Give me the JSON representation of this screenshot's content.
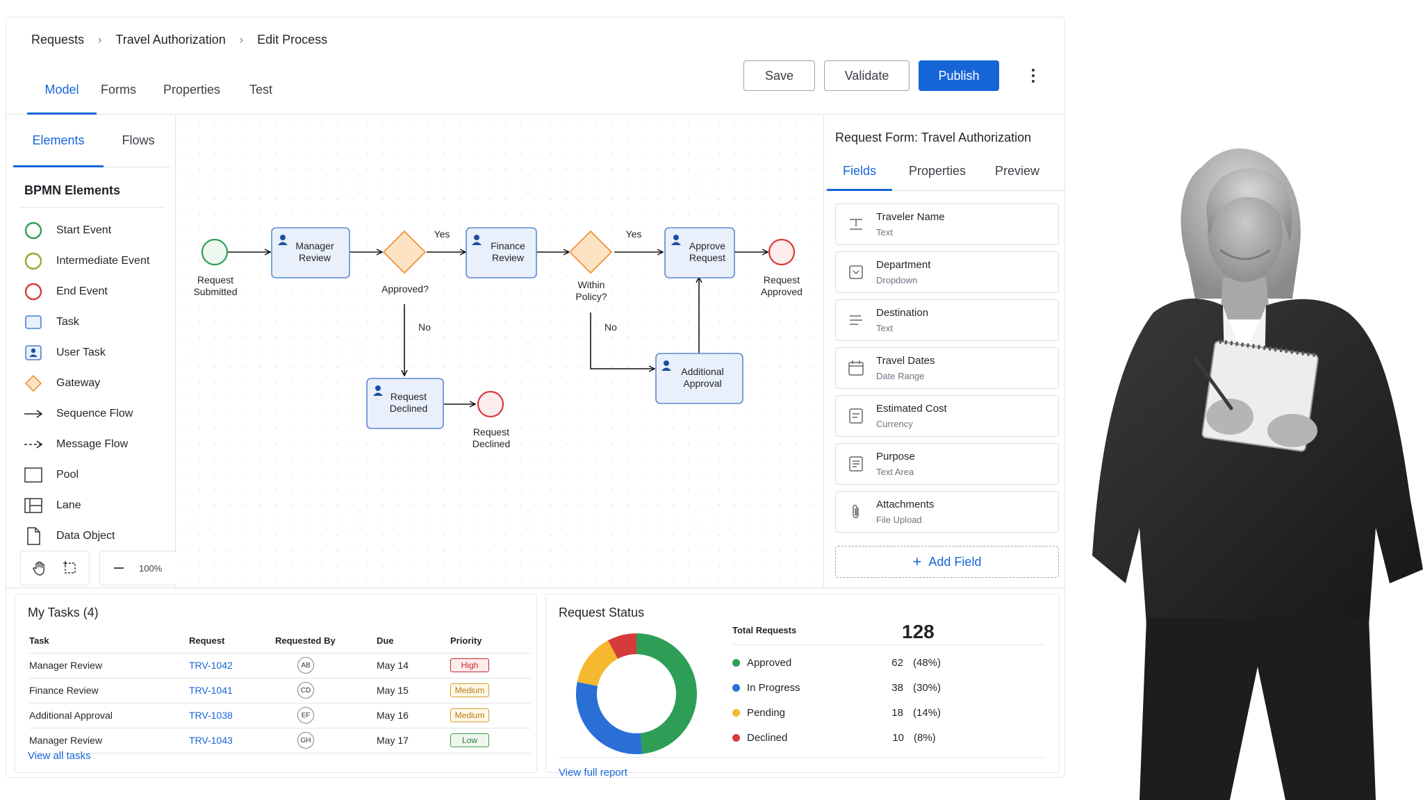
{
  "breadcrumb": [
    "Requests",
    "Travel Authorization",
    "Edit Process"
  ],
  "main_tabs": [
    "Model",
    "Forms",
    "Properties",
    "Test"
  ],
  "actions": {
    "save": "Save",
    "validate": "Validate",
    "publish": "Publish"
  },
  "left_panel": {
    "tabs": [
      "Elements",
      "Flows"
    ],
    "title": "BPMN Elements",
    "elements": [
      {
        "label": "Start Event",
        "icon": "start-event-icon"
      },
      {
        "label": "Intermediate Event",
        "icon": "intermediate-event-icon"
      },
      {
        "label": "End Event",
        "icon": "end-event-icon"
      },
      {
        "label": "Task",
        "icon": "task-icon"
      },
      {
        "label": "User Task",
        "icon": "user-task-icon"
      },
      {
        "label": "Gateway",
        "icon": "gateway-icon"
      },
      {
        "label": "Sequence Flow",
        "icon": "sequence-flow-icon"
      },
      {
        "label": "Message Flow",
        "icon": "message-flow-icon"
      },
      {
        "label": "Pool",
        "icon": "pool-icon"
      },
      {
        "label": "Lane",
        "icon": "lane-icon"
      },
      {
        "label": "Data Object",
        "icon": "data-object-icon"
      }
    ],
    "zoom": "100%"
  },
  "diagram": {
    "nodes": {
      "start": "Request\nSubmitted",
      "manager": "Manager\nReview",
      "approved": "Approved?",
      "finance": "Finance\nReview",
      "policy": "Within\nPolicy?",
      "approve": "Approve\nRequest",
      "end_approved": "Request\nApproved",
      "declined": "Request\nDeclined",
      "end_declined": "Request\nDeclined",
      "additional": "Additional\nApproval"
    },
    "labels": {
      "yes1": "Yes",
      "yes2": "Yes",
      "no1": "No",
      "no2": "No"
    }
  },
  "right_panel": {
    "title": "Request Form: Travel Authorization",
    "tabs": [
      "Fields",
      "Properties",
      "Preview"
    ],
    "fields": [
      {
        "name": "Traveler Name",
        "type": "Text",
        "icon": "text-field-icon"
      },
      {
        "name": "Department",
        "type": "Dropdown",
        "icon": "dropdown-icon"
      },
      {
        "name": "Destination",
        "type": "Text",
        "icon": "text-lines-icon"
      },
      {
        "name": "Travel Dates",
        "type": "Date Range",
        "icon": "calendar-icon"
      },
      {
        "name": "Estimated Cost",
        "type": "Currency",
        "icon": "currency-icon"
      },
      {
        "name": "Purpose",
        "type": "Text Area",
        "icon": "text-area-icon"
      },
      {
        "name": "Attachments",
        "type": "File Upload",
        "icon": "paperclip-icon"
      }
    ],
    "add_field": "Add Field"
  },
  "tasks": {
    "title": "My Tasks (4)",
    "columns": [
      "Task",
      "Request",
      "Requested By",
      "Due",
      "Priority"
    ],
    "rows": [
      {
        "task": "Manager Review",
        "request": "TRV-1042",
        "by": "AB",
        "due": "May 14",
        "priority": "High"
      },
      {
        "task": "Finance Review",
        "request": "TRV-1041",
        "by": "CD",
        "due": "May 15",
        "priority": "Medium"
      },
      {
        "task": "Additional Approval",
        "request": "TRV-1038",
        "by": "EF",
        "due": "May 16",
        "priority": "Medium"
      },
      {
        "task": "Manager Review",
        "request": "TRV-1043",
        "by": "GH",
        "due": "May 17",
        "priority": "Low"
      }
    ],
    "view_all": "View all tasks"
  },
  "status": {
    "title": "Request Status",
    "total_label": "Total Requests",
    "total": "128",
    "view_report": "View full report"
  },
  "chart_data": {
    "type": "pie",
    "title": "Request Status",
    "categories": [
      "Approved",
      "In Progress",
      "Pending",
      "Declined"
    ],
    "values": [
      62,
      38,
      18,
      10
    ],
    "percent_labels": [
      "(48%)",
      "(30%)",
      "(14%)",
      "(8%)"
    ],
    "colors": [
      "#2e9e57",
      "#2a6fd6",
      "#f5b82e",
      "#d63b3b"
    ],
    "donut": true
  },
  "colors": {
    "accent": "#1565d8",
    "high": "#c62828",
    "medium": "#d69e2e",
    "low": "#43a047"
  }
}
